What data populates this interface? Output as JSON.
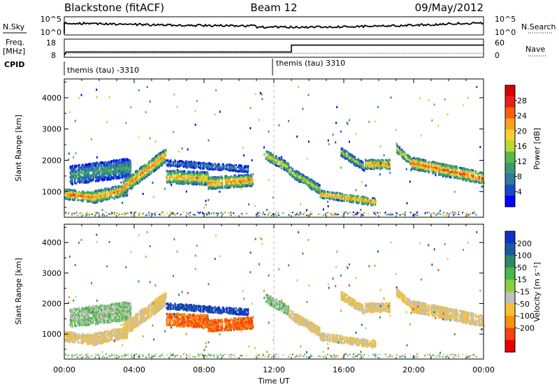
{
  "header": {
    "station": "Blackstone (fitACF)",
    "beam": "Beam 12",
    "date": "09/May/2012"
  },
  "top_panel": {
    "left_label_1": "N.Sky",
    "left_label_2": "Freq.",
    "left_label_3": "[MHz]",
    "left_label_4": "CPID",
    "right_label_1": "N.Search",
    "right_label_2": "Nave",
    "noise_ticks_left": [
      "10^5",
      "10^0"
    ],
    "noise_ticks_right": [
      "10^5",
      "10^0"
    ],
    "freq_ticks": [
      "18",
      "8"
    ],
    "nave_ticks": [
      "60",
      "0"
    ],
    "cpid_1": "themis (tau) -3310",
    "cpid_2": "themis (tau) 3310",
    "freq_series": [
      {
        "hour": 0.0,
        "mhz": 8.0
      },
      {
        "hour": 0.1,
        "mhz": 10.3
      },
      {
        "hour": 13.0,
        "mhz": 10.3
      },
      {
        "hour": 13.0,
        "mhz": 15.2
      },
      {
        "hour": 24.0,
        "mhz": 15.2
      }
    ],
    "nave_series": [
      {
        "hour": 0.1,
        "nave": 8
      },
      {
        "hour": 24.0,
        "nave": 8
      }
    ]
  },
  "chart_data": {
    "type": "heatmap",
    "x_axis": {
      "label": "Time UT",
      "range_hours": [
        0,
        24
      ],
      "tick_labels": [
        "00:00",
        "04:00",
        "08:00",
        "12:00",
        "16:00",
        "20:00",
        "00:00"
      ],
      "tick_hours": [
        0,
        4,
        8,
        12,
        16,
        20,
        24
      ]
    },
    "y_axis": {
      "label": "Slant Range [km]",
      "range_km": [
        180,
        4600
      ],
      "tick_labels": [
        "1000",
        "2000",
        "3000",
        "4000"
      ],
      "tick_values": [
        1000,
        2000,
        3000,
        4000
      ]
    },
    "panels": [
      {
        "name": "power",
        "colorbar_label": "Power [dB]",
        "colorbar_ticks": [
          "4",
          "8",
          "12",
          "16",
          "20",
          "24",
          "28"
        ],
        "colorbar_range": [
          0,
          32
        ],
        "colors": [
          "#0000ff",
          "#1a48c8",
          "#2e7aa0",
          "#3a9a70",
          "#5ab848",
          "#b8d838",
          "#f8d030",
          "#f8a020",
          "#f86010",
          "#e82018",
          "#d80000"
        ]
      },
      {
        "name": "velocity",
        "colorbar_label": "Velocity [m s⁻¹]",
        "colorbar_ticks": [
          "200",
          "100",
          "50",
          "15",
          "-15",
          "-50",
          "-100",
          "-200"
        ],
        "colors": [
          "#1030c8",
          "#1a5aa0",
          "#2e8a60",
          "#48b848",
          "#88d040",
          "#c0c0b8",
          "#f8c030",
          "#f89010",
          "#f84010",
          "#e80000"
        ]
      }
    ],
    "scatter_regions": [
      {
        "t0": 0.0,
        "t1": 1.6,
        "r_start": 950,
        "r_end": 850,
        "width": 320,
        "peak": 24,
        "vel": -15
      },
      {
        "t0": 1.6,
        "t1": 3.6,
        "r_start": 850,
        "r_end": 1100,
        "width": 380,
        "peak": 22,
        "vel": -15
      },
      {
        "t0": 0.3,
        "t1": 3.8,
        "r_start": 1550,
        "r_end": 1800,
        "width": 600,
        "peak": 10,
        "vel": 15
      },
      {
        "t0": 3.2,
        "t1": 5.8,
        "r_start": 1100,
        "r_end": 2200,
        "width": 450,
        "peak": 22,
        "vel": -15
      },
      {
        "t0": 5.8,
        "t1": 8.2,
        "r_start": 1500,
        "r_end": 1450,
        "width": 420,
        "peak": 20,
        "vel": -100
      },
      {
        "t0": 8.2,
        "t1": 10.8,
        "r_start": 1300,
        "r_end": 1400,
        "width": 380,
        "peak": 22,
        "vel": -100
      },
      {
        "t0": 5.8,
        "t1": 10.5,
        "r_start": 1950,
        "r_end": 1750,
        "width": 200,
        "peak": 8,
        "vel": 200
      },
      {
        "t0": 11.5,
        "t1": 12.8,
        "r_start": 2200,
        "r_end": 1800,
        "width": 300,
        "peak": 18,
        "vel": 15
      },
      {
        "t0": 12.8,
        "t1": 14.6,
        "r_start": 1700,
        "r_end": 1100,
        "width": 300,
        "peak": 16,
        "vel": -15
      },
      {
        "t0": 14.6,
        "t1": 17.8,
        "r_start": 950,
        "r_end": 700,
        "width": 240,
        "peak": 22,
        "vel": -15
      },
      {
        "t0": 15.8,
        "t1": 17.2,
        "r_start": 2300,
        "r_end": 1800,
        "width": 260,
        "peak": 14,
        "vel": -15
      },
      {
        "t0": 17.2,
        "t1": 18.6,
        "r_start": 1900,
        "r_end": 1900,
        "width": 300,
        "peak": 22,
        "vel": -15
      },
      {
        "t0": 19.0,
        "t1": 19.8,
        "r_start": 2400,
        "r_end": 2000,
        "width": 260,
        "peak": 18,
        "vel": -15
      },
      {
        "t0": 19.8,
        "t1": 24.0,
        "r_start": 1950,
        "r_end": 1450,
        "width": 380,
        "peak": 24,
        "vel": -15
      }
    ]
  }
}
